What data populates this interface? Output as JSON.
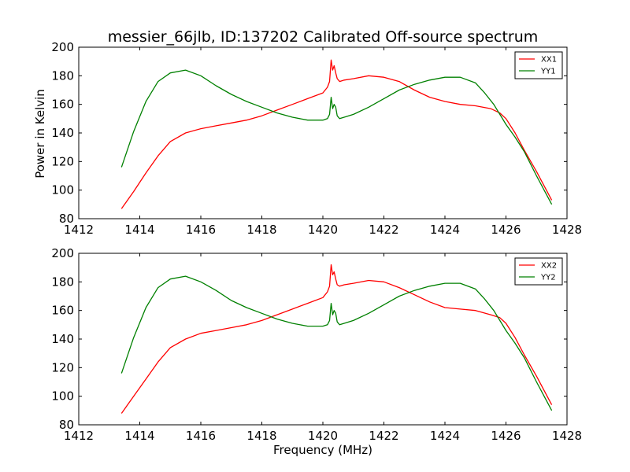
{
  "figure": {
    "title": "messier_66jlb, ID:137202 Calibrated Off-source spectrum",
    "xlabel": "Frequency (MHz)",
    "ylabel": "Power in Kelvin"
  },
  "colors": {
    "xx": "#ff0000",
    "yy": "#008000",
    "axes": "#000000"
  },
  "chart_data": [
    {
      "type": "line",
      "title": "messier_66jlb, ID:137202 Calibrated Off-source spectrum",
      "xlabel": "",
      "ylabel": "Power in Kelvin",
      "xlim": [
        1412,
        1428
      ],
      "ylim": [
        80,
        200
      ],
      "xticks": [
        1412,
        1414,
        1416,
        1418,
        1420,
        1422,
        1424,
        1426,
        1428
      ],
      "yticks": [
        80,
        100,
        120,
        140,
        160,
        180,
        200
      ],
      "grid": false,
      "legend": "top-right",
      "series": [
        {
          "name": "XX1",
          "color": "#ff0000",
          "x": [
            1413.4,
            1413.8,
            1414.2,
            1414.6,
            1415.0,
            1415.5,
            1416.0,
            1416.5,
            1417.0,
            1417.5,
            1418.0,
            1418.5,
            1419.0,
            1419.5,
            1420.0,
            1420.15,
            1420.22,
            1420.27,
            1420.32,
            1420.37,
            1420.42,
            1420.47,
            1420.55,
            1420.7,
            1421.0,
            1421.5,
            1422.0,
            1422.5,
            1423.0,
            1423.5,
            1424.0,
            1424.5,
            1425.0,
            1425.5,
            1425.8,
            1426.0,
            1426.3,
            1426.6,
            1427.0,
            1427.5
          ],
          "y": [
            87,
            99,
            112,
            124,
            134,
            140,
            143,
            145,
            147,
            149,
            152,
            156,
            160,
            164,
            168,
            172,
            176,
            191,
            184,
            187,
            182,
            178,
            176,
            177,
            178,
            180,
            179,
            176,
            170,
            165,
            162,
            160,
            159,
            157,
            154,
            150,
            140,
            128,
            113,
            93
          ]
        },
        {
          "name": "YY1",
          "color": "#008000",
          "x": [
            1413.4,
            1413.8,
            1414.2,
            1414.6,
            1415.0,
            1415.5,
            1416.0,
            1416.5,
            1417.0,
            1417.5,
            1418.0,
            1418.5,
            1419.0,
            1419.5,
            1420.0,
            1420.15,
            1420.22,
            1420.27,
            1420.32,
            1420.37,
            1420.42,
            1420.47,
            1420.55,
            1420.7,
            1421.0,
            1421.5,
            1422.0,
            1422.5,
            1423.0,
            1423.5,
            1424.0,
            1424.5,
            1425.0,
            1425.3,
            1425.6,
            1426.0,
            1426.3,
            1426.6,
            1427.0,
            1427.5
          ],
          "y": [
            116,
            141,
            162,
            176,
            182,
            184,
            180,
            173,
            167,
            162,
            158,
            154,
            151,
            149,
            149,
            150,
            153,
            165,
            157,
            160,
            158,
            152,
            150,
            151,
            153,
            158,
            164,
            170,
            174,
            177,
            179,
            179,
            175,
            168,
            160,
            146,
            137,
            127,
            110,
            90
          ]
        }
      ]
    },
    {
      "type": "line",
      "title": "",
      "xlabel": "Frequency (MHz)",
      "ylabel": "",
      "xlim": [
        1412,
        1428
      ],
      "ylim": [
        80,
        200
      ],
      "xticks": [
        1412,
        1414,
        1416,
        1418,
        1420,
        1422,
        1424,
        1426,
        1428
      ],
      "yticks": [
        80,
        100,
        120,
        140,
        160,
        180,
        200
      ],
      "grid": false,
      "legend": "top-right",
      "series": [
        {
          "name": "XX2",
          "color": "#ff0000",
          "x": [
            1413.4,
            1413.8,
            1414.2,
            1414.6,
            1415.0,
            1415.5,
            1416.0,
            1416.5,
            1417.0,
            1417.5,
            1418.0,
            1418.5,
            1419.0,
            1419.5,
            1420.0,
            1420.15,
            1420.22,
            1420.27,
            1420.32,
            1420.37,
            1420.42,
            1420.47,
            1420.55,
            1420.7,
            1421.0,
            1421.5,
            1422.0,
            1422.5,
            1423.0,
            1423.5,
            1424.0,
            1424.5,
            1425.0,
            1425.5,
            1425.8,
            1426.0,
            1426.3,
            1426.6,
            1427.0,
            1427.5
          ],
          "y": [
            88,
            100,
            112,
            124,
            134,
            140,
            144,
            146,
            148,
            150,
            153,
            157,
            161,
            165,
            169,
            173,
            177,
            192,
            185,
            187,
            182,
            178,
            177,
            178,
            179,
            181,
            180,
            176,
            171,
            166,
            162,
            161,
            160,
            157,
            155,
            151,
            141,
            129,
            114,
            94
          ]
        },
        {
          "name": "YY2",
          "color": "#008000",
          "x": [
            1413.4,
            1413.8,
            1414.2,
            1414.6,
            1415.0,
            1415.5,
            1416.0,
            1416.5,
            1417.0,
            1417.5,
            1418.0,
            1418.5,
            1419.0,
            1419.5,
            1420.0,
            1420.15,
            1420.22,
            1420.27,
            1420.32,
            1420.37,
            1420.42,
            1420.47,
            1420.55,
            1420.7,
            1421.0,
            1421.5,
            1422.0,
            1422.5,
            1423.0,
            1423.5,
            1424.0,
            1424.5,
            1425.0,
            1425.3,
            1425.6,
            1426.0,
            1426.3,
            1426.6,
            1427.0,
            1427.5
          ],
          "y": [
            116,
            141,
            162,
            176,
            182,
            184,
            180,
            174,
            167,
            162,
            158,
            154,
            151,
            149,
            149,
            150,
            153,
            165,
            157,
            160,
            158,
            152,
            150,
            151,
            153,
            158,
            164,
            170,
            174,
            177,
            179,
            179,
            175,
            168,
            160,
            146,
            137,
            127,
            110,
            90
          ]
        }
      ]
    }
  ]
}
